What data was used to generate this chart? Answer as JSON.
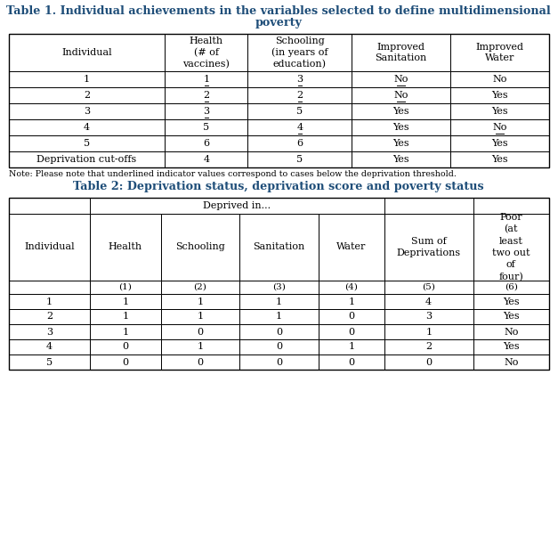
{
  "title1_line1": "Table 1. Individual achievements in the variables selected to define multidimensional",
  "title1_line2": "poverty",
  "title2": "Table 2: Deprivation status, deprivation score and poverty status",
  "note": "Note: Please note that underlined indicator values correspond to cases below the deprivation threshold.",
  "table1": {
    "col_headers": [
      "Individual",
      "Health\n(# of\nvaccines)",
      "Schooling\n(in years of\neducation)",
      "Improved\nSanitation",
      "Improved\nWater"
    ],
    "rows": [
      [
        "1",
        "1",
        "3",
        "No",
        "No"
      ],
      [
        "2",
        "2",
        "2",
        "No",
        "Yes"
      ],
      [
        "3",
        "3",
        "5",
        "Yes",
        "Yes"
      ],
      [
        "4",
        "5",
        "4",
        "Yes",
        "No"
      ],
      [
        "5",
        "6",
        "6",
        "Yes",
        "Yes"
      ],
      [
        "Deprivation cut-offs",
        "4",
        "5",
        "Yes",
        "Yes"
      ]
    ],
    "underlined": [
      [
        0,
        1
      ],
      [
        0,
        2
      ],
      [
        0,
        3
      ],
      [
        1,
        1
      ],
      [
        1,
        2
      ],
      [
        1,
        3
      ],
      [
        2,
        1
      ],
      [
        3,
        2
      ],
      [
        3,
        4
      ]
    ]
  },
  "table2": {
    "col_headers_sub": [
      "Individual",
      "Health",
      "Schooling",
      "Sanitation",
      "Water",
      "Sum of\nDeprivations",
      "Poor\n(at\nleast\ntwo out\nof\nfour)"
    ],
    "col_numbers": [
      "",
      "(1)",
      "(2)",
      "(3)",
      "(4)",
      "(5)",
      "(6)"
    ],
    "rows": [
      [
        "1",
        "1",
        "1",
        "1",
        "1",
        "4",
        "Yes"
      ],
      [
        "2",
        "1",
        "1",
        "1",
        "0",
        "3",
        "Yes"
      ],
      [
        "3",
        "1",
        "0",
        "0",
        "0",
        "1",
        "No"
      ],
      [
        "4",
        "0",
        "1",
        "0",
        "1",
        "2",
        "Yes"
      ],
      [
        "5",
        "0",
        "0",
        "0",
        "0",
        "0",
        "No"
      ]
    ]
  },
  "title_color": "#1f4e79",
  "bg_color": "#ffffff",
  "font_size": 8.0
}
